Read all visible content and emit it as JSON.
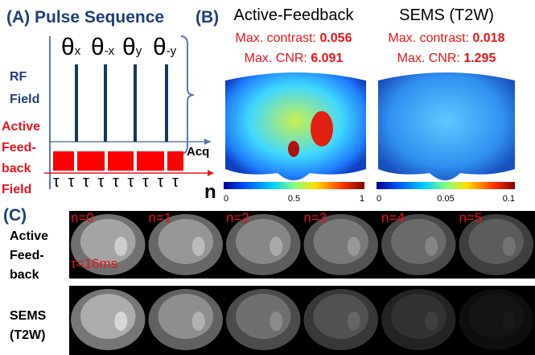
{
  "panel_a": {
    "title": "(A) Pulse Sequence",
    "pulses": [
      {
        "base": "θ",
        "sub": "x"
      },
      {
        "base": "θ",
        "sub": "-x"
      },
      {
        "base": "θ",
        "sub": "y"
      },
      {
        "base": "θ",
        "sub": "-y"
      }
    ],
    "rf_label": [
      "RF",
      "Field"
    ],
    "feedback_label": [
      "Active",
      "Feed-",
      "back",
      "Field"
    ],
    "acq": "Acq",
    "tau": [
      "τ",
      "τ",
      "τ",
      "τ",
      "τ",
      "τ",
      "τ",
      "τ",
      "τ"
    ],
    "n": "n"
  },
  "panel_b": {
    "label": "(B)",
    "maps": [
      {
        "title": "Active-Feedback",
        "contrast_label": "Max. contrast: ",
        "contrast": "0.056",
        "cnr_label": "Max. CNR: ",
        "cnr": "6.091",
        "colorbar_ticks": [
          "0",
          "0.5",
          "1"
        ]
      },
      {
        "title": "SEMS (T2W)",
        "contrast_label": "Max. contrast: ",
        "contrast": "0.018",
        "cnr_label": "Max. CNR: ",
        "cnr": "1.295",
        "colorbar_ticks": [
          "0",
          "0.05",
          "0.1"
        ]
      }
    ]
  },
  "panel_c": {
    "label": "(C)",
    "n_labels": [
      "n=0",
      "n=1",
      "n=2",
      "n=3",
      "n=4",
      "n=5"
    ],
    "rows": [
      {
        "label": [
          "Active",
          "Feed-",
          "back"
        ],
        "note": "τ=16ms"
      },
      {
        "label": [
          "SEMS",
          "(T2W)"
        ]
      }
    ]
  }
}
